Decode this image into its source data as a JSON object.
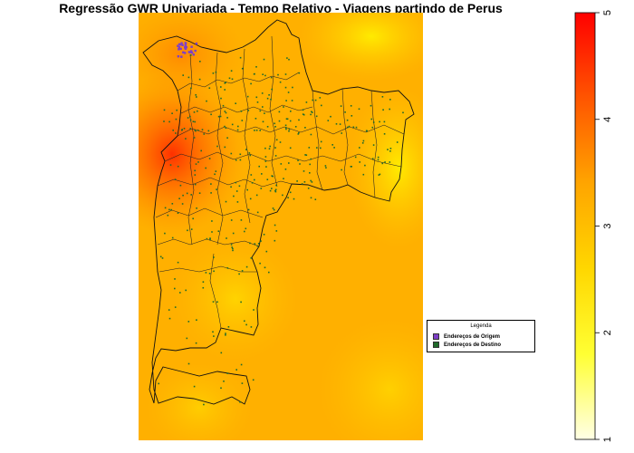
{
  "title": "Regressão GWR Univariada - Tempo Relativo - Viagens partindo de Perus",
  "legend": {
    "title": "Legenda",
    "items": [
      {
        "label": "Endereços de Origem",
        "color": "#7e3fc7"
      },
      {
        "label": "Endereços de Destino",
        "color": "#1f6b2a"
      }
    ]
  },
  "colorbar": {
    "min": 1,
    "max": 5,
    "ticks": [
      "1",
      "2",
      "3",
      "4",
      "5"
    ],
    "colors": [
      "#ffffe6",
      "#ffff33",
      "#ffd700",
      "#ffa500",
      "#ff5500",
      "#ff0000"
    ]
  },
  "surface_colors": {
    "base": "#ffb000",
    "hot": "#ff3a00",
    "cool": "#ffe600"
  }
}
